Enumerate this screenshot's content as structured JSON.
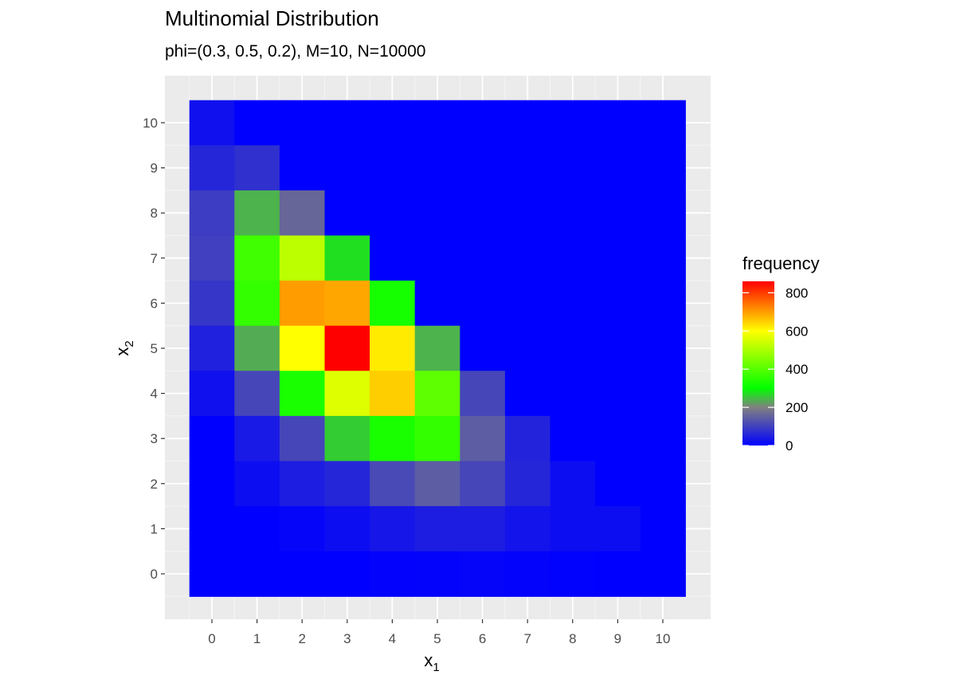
{
  "chart_data": {
    "type": "heatmap",
    "title": "Multinomial Distribution",
    "subtitle": "phi=(0.3, 0.5, 0.2), M=10, N=10000",
    "xlabel_main": "x",
    "xlabel_sub": "1",
    "ylabel_main": "x",
    "ylabel_sub": "2",
    "x_ticks": [
      0,
      1,
      2,
      3,
      4,
      5,
      6,
      7,
      8,
      9,
      10
    ],
    "y_ticks": [
      0,
      1,
      2,
      3,
      4,
      5,
      6,
      7,
      8,
      9,
      10
    ],
    "xlim": [
      -0.5,
      10.5
    ],
    "ylim": [
      -0.5,
      10.5
    ],
    "legend": {
      "title": "frequency",
      "breaks": [
        0,
        200,
        400,
        600,
        800
      ],
      "range": [
        0,
        860
      ],
      "placement": "right",
      "gradient": [
        {
          "value": 0,
          "color": "#0000ff"
        },
        {
          "value": 200,
          "color": "#808080"
        },
        {
          "value": 300,
          "color": "#00ff00"
        },
        {
          "value": 600,
          "color": "#ffff00"
        },
        {
          "value": 860,
          "color": "#ff0000"
        }
      ]
    },
    "grid": true,
    "rows": [
      {
        "x2": 10,
        "values": [
          25,
          0,
          0,
          0,
          0,
          0,
          0,
          0,
          0,
          0,
          0
        ]
      },
      {
        "x2": 9,
        "values": [
          60,
          75,
          0,
          0,
          0,
          0,
          0,
          0,
          0,
          0,
          0
        ]
      },
      {
        "x2": 8,
        "values": [
          95,
          240,
          160,
          0,
          0,
          0,
          0,
          0,
          0,
          0,
          0
        ]
      },
      {
        "x2": 7,
        "values": [
          100,
          375,
          520,
          275,
          0,
          0,
          0,
          0,
          0,
          0,
          0
        ]
      },
      {
        "x2": 6,
        "values": [
          85,
          360,
          700,
          690,
          325,
          0,
          0,
          0,
          0,
          0,
          0
        ]
      },
      {
        "x2": 5,
        "values": [
          50,
          235,
          600,
          860,
          620,
          240,
          0,
          0,
          0,
          0,
          0
        ]
      },
      {
        "x2": 4,
        "values": [
          25,
          110,
          330,
          560,
          650,
          410,
          110,
          0,
          0,
          0,
          0
        ]
      },
      {
        "x2": 3,
        "values": [
          0,
          40,
          110,
          260,
          330,
          360,
          145,
          55,
          0,
          0,
          0
        ]
      },
      {
        "x2": 2,
        "values": [
          0,
          20,
          45,
          60,
          115,
          145,
          110,
          60,
          20,
          0,
          0
        ]
      },
      {
        "x2": 1,
        "values": [
          0,
          0,
          8,
          20,
          35,
          45,
          45,
          30,
          20,
          20,
          0
        ]
      },
      {
        "x2": 0,
        "values": [
          0,
          0,
          0,
          0,
          3,
          5,
          8,
          5,
          2,
          0,
          0
        ]
      }
    ]
  }
}
